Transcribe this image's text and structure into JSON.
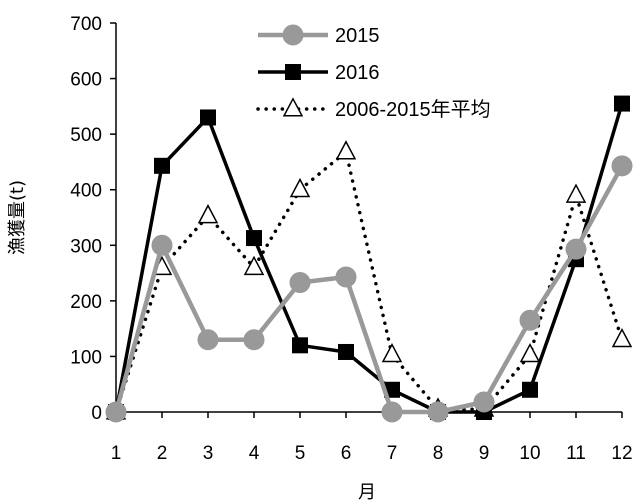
{
  "chart_data": {
    "type": "line",
    "title": "",
    "xlabel": "月",
    "ylabel": "漁獲量(t)",
    "x": [
      1,
      2,
      3,
      4,
      5,
      6,
      7,
      8,
      9,
      10,
      11,
      12
    ],
    "xlim": [
      1,
      12
    ],
    "ylim": [
      0,
      700
    ],
    "yticks": [
      0,
      100,
      200,
      300,
      400,
      500,
      600,
      700
    ],
    "grid": false,
    "legend_position": "top-center",
    "series": [
      {
        "name": "2015",
        "color": "#999999",
        "marker": "circle",
        "line_style": "solid",
        "values": [
          0,
          300,
          130,
          130,
          233,
          243,
          0,
          0,
          18,
          165,
          293,
          443
        ]
      },
      {
        "name": "2016",
        "color": "#000000",
        "marker": "square",
        "line_style": "solid",
        "values": [
          0,
          443,
          530,
          313,
          120,
          108,
          40,
          0,
          0,
          40,
          275,
          555
        ]
      },
      {
        "name": "2006-2015年平均",
        "color": "#000000",
        "marker": "triangle-open",
        "line_style": "dotted",
        "values": [
          0,
          260,
          353,
          260,
          400,
          468,
          103,
          5,
          5,
          103,
          390,
          130
        ]
      }
    ]
  }
}
